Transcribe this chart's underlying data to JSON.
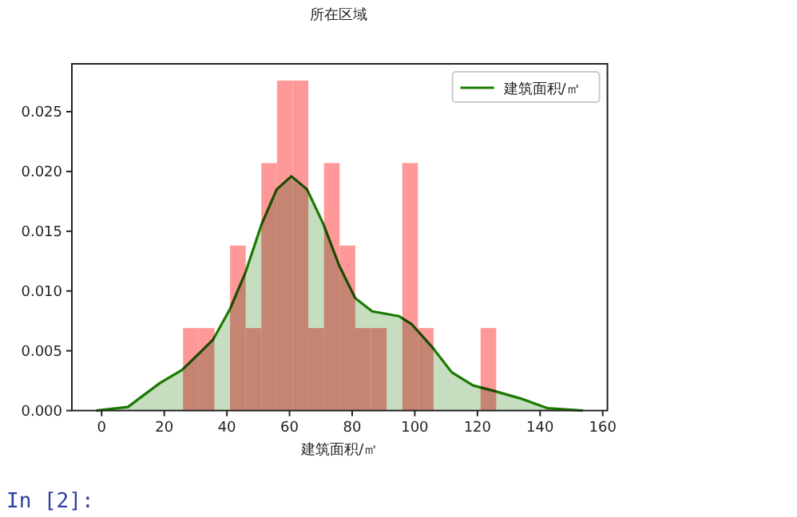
{
  "chart_data": {
    "type": "histogram",
    "xlabel": "建筑面积/㎡",
    "annotations": [
      "所在区域",
      "In [2]:"
    ],
    "bins": [
      26,
      31,
      36,
      41,
      46,
      51,
      56,
      61,
      66,
      71,
      76,
      81,
      86,
      91,
      96,
      101,
      106,
      111,
      116,
      121,
      126
    ],
    "values": [
      0.0069,
      0.0069,
      0,
      0.0138,
      0.0069,
      0.0207,
      0.0276,
      0.0276,
      0.0069,
      0.0207,
      0.0138,
      0.0069,
      0.0069,
      0,
      0.0207,
      0.0069,
      0,
      0,
      0,
      0.0069
    ],
    "color": "#ff9999",
    "series": [
      {
        "type": "area",
        "name": "建筑面积/㎡",
        "color": "#1a7a00",
        "x": [
          -1.8,
          8.4,
          18.6,
          25.7,
          35.5,
          41,
          46,
          51.1,
          55.9,
          60.6,
          65.6,
          70.8,
          75.9,
          81,
          86.4,
          94.9,
          99.1,
          105.9,
          111.8,
          118.6,
          125.9,
          133.9,
          142.3,
          153.7
        ],
        "values": [
          0,
          0.0003,
          0.0023,
          0.0034,
          0.0059,
          0.0085,
          0.0116,
          0.0156,
          0.0185,
          0.0196,
          0.0185,
          0.0156,
          0.0121,
          0.0094,
          0.0083,
          0.0079,
          0.0072,
          0.0052,
          0.0032,
          0.0021,
          0.0016,
          0.001,
          0.0002,
          0
        ]
      }
    ],
    "xlim": [
      -9.5,
      161.5
    ],
    "ylim": [
      0,
      0.029
    ],
    "xticks": [
      0,
      20,
      40,
      60,
      80,
      100,
      120,
      140,
      160
    ],
    "yticks": [
      {
        "value": 0,
        "label": "0.000"
      },
      {
        "value": 0.005,
        "label": "0.005"
      },
      {
        "value": 0.01,
        "label": "0.010"
      },
      {
        "value": 0.015,
        "label": "0.015"
      },
      {
        "value": 0.02,
        "label": "0.020"
      },
      {
        "value": 0.025,
        "label": "0.025"
      }
    ],
    "legend": "top right"
  }
}
